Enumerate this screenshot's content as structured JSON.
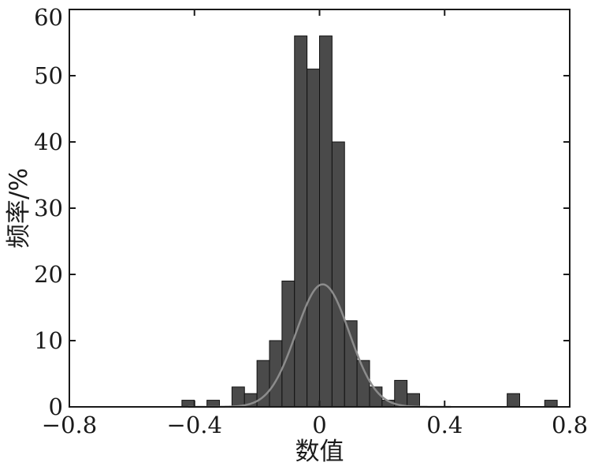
{
  "chart_data": {
    "type": "bar",
    "xlabel": "数值",
    "ylabel": "频率/%",
    "xlim": [
      -0.8,
      0.8
    ],
    "ylim": [
      0,
      60
    ],
    "x_ticks": [
      -0.8,
      -0.4,
      0,
      0.4,
      0.8
    ],
    "x_tick_labels": [
      "−0.8",
      "−0.4",
      "0",
      "0.4",
      "0.8"
    ],
    "y_ticks": [
      0,
      10,
      20,
      30,
      40,
      50,
      60
    ],
    "y_tick_labels": [
      "0",
      "10",
      "20",
      "30",
      "40",
      "50",
      "60"
    ],
    "grid": false,
    "bar_color": "#4a4a4a",
    "curve_color": "#8c8c8c",
    "bins": [
      {
        "x0": -0.44,
        "x1": -0.4,
        "value": 1
      },
      {
        "x0": -0.36,
        "x1": -0.32,
        "value": 1
      },
      {
        "x0": -0.28,
        "x1": -0.24,
        "value": 3
      },
      {
        "x0": -0.24,
        "x1": -0.2,
        "value": 2
      },
      {
        "x0": -0.2,
        "x1": -0.16,
        "value": 7
      },
      {
        "x0": -0.16,
        "x1": -0.12,
        "value": 10
      },
      {
        "x0": -0.12,
        "x1": -0.08,
        "value": 19
      },
      {
        "x0": -0.08,
        "x1": -0.04,
        "value": 56
      },
      {
        "x0": -0.04,
        "x1": 0.0,
        "value": 51
      },
      {
        "x0": 0.0,
        "x1": 0.04,
        "value": 56
      },
      {
        "x0": 0.04,
        "x1": 0.08,
        "value": 40
      },
      {
        "x0": 0.08,
        "x1": 0.12,
        "value": 13
      },
      {
        "x0": 0.12,
        "x1": 0.16,
        "value": 7
      },
      {
        "x0": 0.16,
        "x1": 0.2,
        "value": 3
      },
      {
        "x0": 0.2,
        "x1": 0.24,
        "value": 1
      },
      {
        "x0": 0.24,
        "x1": 0.28,
        "value": 4
      },
      {
        "x0": 0.28,
        "x1": 0.32,
        "value": 2
      },
      {
        "x0": 0.6,
        "x1": 0.64,
        "value": 2
      },
      {
        "x0": 0.72,
        "x1": 0.76,
        "value": 1
      }
    ],
    "fit_curve": {
      "type": "normal",
      "mean": 0.01,
      "std": 0.085,
      "peak": 18.5
    }
  }
}
